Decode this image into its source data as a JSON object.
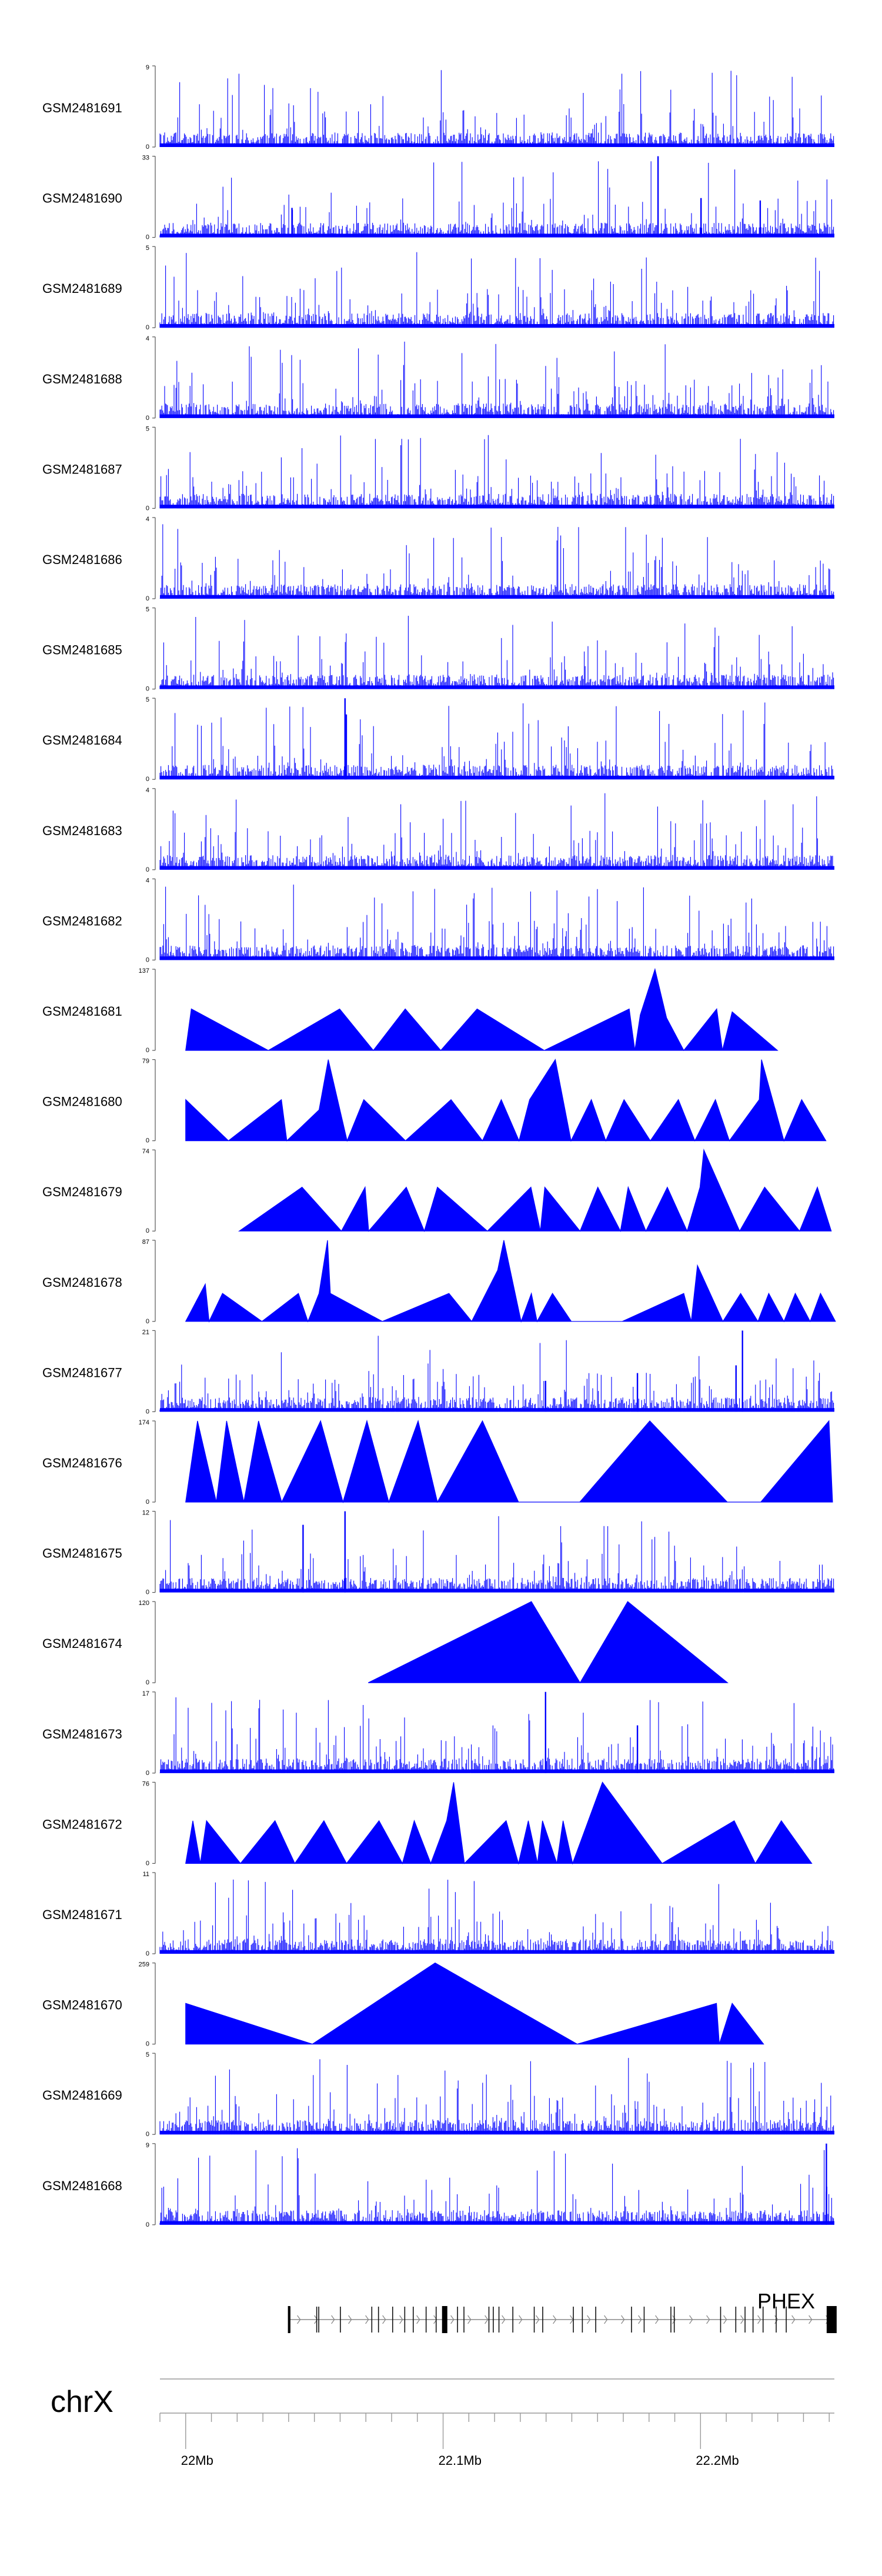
{
  "figure": {
    "chromosome": "chrX",
    "gene": "PHEX"
  },
  "chart_data": {
    "type": "area",
    "x_axis": {
      "ticks": [
        "22Mb",
        "22.1Mb",
        "22.2Mb"
      ],
      "tick_values_mb": [
        22.0,
        22.1,
        22.2
      ],
      "range_mb": [
        21.99,
        22.252
      ]
    },
    "tracks": [
      {
        "name": "GSM2481691",
        "ymax": 9,
        "ylim": [
          0,
          9
        ],
        "style": "dense",
        "seed": 11,
        "peaks": []
      },
      {
        "name": "GSM2481690",
        "ymax": 33,
        "ylim": [
          0,
          33
        ],
        "style": "triangles",
        "seed": 12,
        "peaks": [
          [
            22.1835,
            33
          ],
          [
            22.2232,
            15
          ],
          [
            22.2002,
            16
          ],
          [
            22.0413,
            12
          ]
        ]
      },
      {
        "name": "GSM2481689",
        "ymax": 5,
        "ylim": [
          0,
          5
        ],
        "style": "dense",
        "seed": 13,
        "peaks": []
      },
      {
        "name": "GSM2481688",
        "ymax": 4,
        "ylim": [
          0,
          4
        ],
        "style": "dense",
        "seed": 14,
        "peaks": []
      },
      {
        "name": "GSM2481687",
        "ymax": 5,
        "ylim": [
          0,
          5
        ],
        "style": "dense",
        "seed": 15,
        "peaks": []
      },
      {
        "name": "GSM2481686",
        "ymax": 4,
        "ylim": [
          0,
          4
        ],
        "style": "dense",
        "seed": 16,
        "peaks": []
      },
      {
        "name": "GSM2481685",
        "ymax": 5,
        "ylim": [
          0,
          5
        ],
        "style": "dense",
        "seed": 17,
        "peaks": []
      },
      {
        "name": "GSM2481684",
        "ymax": 5,
        "ylim": [
          0,
          5
        ],
        "style": "dense",
        "seed": 18,
        "peaks": [
          [
            22.0619,
            5
          ],
          [
            22.0624,
            4
          ]
        ]
      },
      {
        "name": "GSM2481683",
        "ymax": 4,
        "ylim": [
          0,
          4
        ],
        "style": "dense",
        "seed": 19,
        "peaks": []
      },
      {
        "name": "GSM2481682",
        "ymax": 4,
        "ylim": [
          0,
          4
        ],
        "style": "dense",
        "seed": 20,
        "peaks": []
      },
      {
        "name": "GSM2481681",
        "ymax": 137,
        "ylim": [
          0,
          137
        ],
        "style": "peaks",
        "seed": 21,
        "points": [
          [
            22.0,
            0
          ],
          [
            22.0022,
            70
          ],
          [
            22.0321,
            0
          ],
          [
            22.0598,
            70
          ],
          [
            22.0729,
            0
          ],
          [
            22.0853,
            70
          ],
          [
            22.0991,
            0
          ],
          [
            22.1132,
            70
          ],
          [
            22.1393,
            0
          ],
          [
            22.1723,
            70
          ],
          [
            22.1745,
            0
          ],
          [
            22.1766,
            60
          ],
          [
            22.1823,
            137
          ],
          [
            22.1868,
            55
          ],
          [
            22.1935,
            0
          ],
          [
            22.2063,
            70
          ],
          [
            22.2085,
            0
          ],
          [
            22.2123,
            65
          ],
          [
            22.2299,
            0
          ]
        ]
      },
      {
        "name": "GSM2481680",
        "ymax": 79,
        "ylim": [
          0,
          79
        ],
        "style": "peaks",
        "seed": 22,
        "points": [
          [
            22.0,
            40
          ],
          [
            22.0166,
            0
          ],
          [
            22.0372,
            40
          ],
          [
            22.0393,
            0
          ],
          [
            22.0518,
            30
          ],
          [
            22.0554,
            79
          ],
          [
            22.0627,
            0
          ],
          [
            22.0692,
            40
          ],
          [
            22.0854,
            0
          ],
          [
            22.1031,
            40
          ],
          [
            22.1153,
            0
          ],
          [
            22.1226,
            40
          ],
          [
            22.1295,
            0
          ],
          [
            22.1336,
            40
          ],
          [
            22.1436,
            79
          ],
          [
            22.1497,
            0
          ],
          [
            22.1576,
            40
          ],
          [
            22.1632,
            0
          ],
          [
            22.1703,
            40
          ],
          [
            22.1805,
            0
          ],
          [
            22.1914,
            40
          ],
          [
            22.1978,
            0
          ],
          [
            22.2058,
            40
          ],
          [
            22.2112,
            0
          ],
          [
            22.2228,
            40
          ],
          [
            22.2237,
            79
          ],
          [
            22.2324,
            0
          ],
          [
            22.2393,
            40
          ],
          [
            22.2487,
            0
          ]
        ]
      },
      {
        "name": "GSM2481679",
        "ymax": 74,
        "ylim": [
          0,
          74
        ],
        "style": "peaks",
        "seed": 23,
        "points": [
          [
            22.0208,
            0
          ],
          [
            22.0452,
            40
          ],
          [
            22.0605,
            0
          ],
          [
            22.0697,
            40
          ],
          [
            22.0711,
            0
          ],
          [
            22.0857,
            40
          ],
          [
            22.0927,
            0
          ],
          [
            22.0978,
            40
          ],
          [
            22.1172,
            0
          ],
          [
            22.1341,
            40
          ],
          [
            22.1378,
            0
          ],
          [
            22.1395,
            40
          ],
          [
            22.1532,
            0
          ],
          [
            22.1601,
            40
          ],
          [
            22.1689,
            0
          ],
          [
            22.1719,
            40
          ],
          [
            22.1788,
            0
          ],
          [
            22.1871,
            40
          ],
          [
            22.1948,
            0
          ],
          [
            22.1998,
            40
          ],
          [
            22.2013,
            74
          ],
          [
            22.2152,
            0
          ],
          [
            22.2249,
            40
          ],
          [
            22.2385,
            0
          ],
          [
            22.2454,
            40
          ],
          [
            22.2508,
            0
          ]
        ]
      },
      {
        "name": "GSM2481678",
        "ymax": 87,
        "ylim": [
          0,
          87
        ],
        "style": "peaks",
        "seed": 24,
        "points": [
          [
            22.0,
            0
          ],
          [
            22.0076,
            40
          ],
          [
            22.0091,
            0
          ],
          [
            22.0143,
            30
          ],
          [
            22.0296,
            0
          ],
          [
            22.0438,
            30
          ],
          [
            22.0475,
            0
          ],
          [
            22.0518,
            30
          ],
          [
            22.0551,
            87
          ],
          [
            22.0562,
            30
          ],
          [
            22.0764,
            0
          ],
          [
            22.1023,
            30
          ],
          [
            22.1111,
            0
          ],
          [
            22.1212,
            55
          ],
          [
            22.1236,
            87
          ],
          [
            22.1303,
            0
          ],
          [
            22.1343,
            30
          ],
          [
            22.1365,
            0
          ],
          [
            22.1425,
            30
          ],
          [
            22.1498,
            0
          ],
          [
            22.1696,
            0
          ],
          [
            22.1935,
            30
          ],
          [
            22.1964,
            0
          ],
          [
            22.1988,
            60
          ],
          [
            22.2087,
            0
          ],
          [
            22.2156,
            30
          ],
          [
            22.2223,
            0
          ],
          [
            22.2265,
            30
          ],
          [
            22.2324,
            0
          ],
          [
            22.2368,
            30
          ],
          [
            22.2426,
            0
          ],
          [
            22.2466,
            30
          ],
          [
            22.2524,
            0
          ]
        ]
      },
      {
        "name": "GSM2481677",
        "ymax": 21,
        "ylim": [
          0,
          21
        ],
        "style": "dense",
        "seed": 25,
        "peaks": [
          [
            22.2163,
            21
          ],
          [
            22.2138,
            12
          ],
          [
            22.1755,
            10
          ],
          [
            22.1398,
            8
          ]
        ]
      },
      {
        "name": "GSM2481676",
        "ymax": 174,
        "ylim": [
          0,
          174
        ],
        "style": "peaks",
        "seed": 26,
        "points": [
          [
            22.0,
            0
          ],
          [
            22.0046,
            174
          ],
          [
            22.0119,
            0
          ],
          [
            22.0159,
            174
          ],
          [
            22.0226,
            0
          ],
          [
            22.0283,
            174
          ],
          [
            22.0373,
            0
          ],
          [
            22.0524,
            174
          ],
          [
            22.0611,
            0
          ],
          [
            22.0704,
            174
          ],
          [
            22.0789,
            0
          ],
          [
            22.0903,
            174
          ],
          [
            22.0978,
            0
          ],
          [
            22.1153,
            174
          ],
          [
            22.1293,
            0
          ],
          [
            22.1531,
            0
          ],
          [
            22.1803,
            174
          ],
          [
            22.2104,
            0
          ],
          [
            22.2234,
            0
          ],
          [
            22.2499,
            174
          ],
          [
            22.2513,
            0
          ]
        ]
      },
      {
        "name": "GSM2481675",
        "ymax": 12,
        "ylim": [
          0,
          12
        ],
        "style": "dense",
        "seed": 27,
        "peaks": [
          [
            22.0619,
            12
          ],
          [
            22.0456,
            10
          ]
        ]
      },
      {
        "name": "GSM2481674",
        "ymax": 120,
        "ylim": [
          0,
          120
        ],
        "style": "peaks",
        "seed": 28,
        "points": [
          [
            22.0709,
            0
          ],
          [
            22.1343,
            120
          ],
          [
            22.1532,
            0
          ],
          [
            22.1717,
            120
          ],
          [
            22.2105,
            0
          ]
        ]
      },
      {
        "name": "GSM2481673",
        "ymax": 17,
        "ylim": [
          0,
          17
        ],
        "style": "dense",
        "seed": 29,
        "peaks": [
          [
            22.1398,
            17
          ],
          [
            22.1755,
            10
          ]
        ]
      },
      {
        "name": "GSM2481672",
        "ymax": 76,
        "ylim": [
          0,
          76
        ],
        "style": "peaks",
        "seed": 30,
        "points": [
          [
            22.0,
            0
          ],
          [
            22.0028,
            40
          ],
          [
            22.0057,
            0
          ],
          [
            22.0081,
            40
          ],
          [
            22.0213,
            0
          ],
          [
            22.0347,
            40
          ],
          [
            22.0424,
            0
          ],
          [
            22.0537,
            40
          ],
          [
            22.0625,
            0
          ],
          [
            22.0751,
            40
          ],
          [
            22.0842,
            0
          ],
          [
            22.0888,
            40
          ],
          [
            22.0952,
            0
          ],
          [
            22.1014,
            40
          ],
          [
            22.1041,
            76
          ],
          [
            22.1083,
            0
          ],
          [
            22.1245,
            40
          ],
          [
            22.1293,
            0
          ],
          [
            22.1331,
            40
          ],
          [
            22.1367,
            0
          ],
          [
            22.1386,
            40
          ],
          [
            22.1442,
            0
          ],
          [
            22.1466,
            40
          ],
          [
            22.1503,
            0
          ],
          [
            22.1619,
            76
          ],
          [
            22.1851,
            0
          ],
          [
            22.2131,
            40
          ],
          [
            22.2213,
            0
          ],
          [
            22.2314,
            40
          ],
          [
            22.2432,
            0
          ]
        ]
      },
      {
        "name": "GSM2481671",
        "ymax": 11,
        "ylim": [
          0,
          11
        ],
        "style": "dense",
        "seed": 31,
        "peaks": []
      },
      {
        "name": "GSM2481670",
        "ymax": 259,
        "ylim": [
          0,
          259
        ],
        "style": "peaks",
        "seed": 32,
        "points": [
          [
            22.0,
            130
          ],
          [
            22.0492,
            0
          ],
          [
            22.0969,
            259
          ],
          [
            22.1521,
            0
          ],
          [
            22.2062,
            130
          ],
          [
            22.2073,
            0
          ],
          [
            22.2123,
            130
          ],
          [
            22.2245,
            0
          ]
        ]
      },
      {
        "name": "GSM2481669",
        "ymax": 5,
        "ylim": [
          0,
          5
        ],
        "style": "dense",
        "seed": 33,
        "peaks": []
      },
      {
        "name": "GSM2481668",
        "ymax": 9,
        "ylim": [
          0,
          9
        ],
        "style": "dense",
        "seed": 34,
        "peaks": [
          [
            22.2489,
            9
          ]
        ]
      }
    ],
    "gene_model": {
      "name": "PHEX",
      "start_mb": 22.0404,
      "end_mb": 22.2522,
      "exons_mb": [
        22.0405,
        22.0509,
        22.0517,
        22.0601,
        22.0723,
        22.0749,
        22.0804,
        22.0851,
        22.0884,
        22.0934,
        22.0973,
        22.1004,
        22.1056,
        22.1081,
        22.1178,
        22.1195,
        22.1217,
        22.1271,
        22.1354,
        22.1387,
        22.1506,
        22.1541,
        22.1593,
        22.1732,
        22.1781,
        22.1885,
        22.1898,
        22.2078,
        22.2137,
        22.2173,
        22.2204,
        22.2243,
        22.2294,
        22.2333
      ],
      "strand": "+"
    }
  }
}
